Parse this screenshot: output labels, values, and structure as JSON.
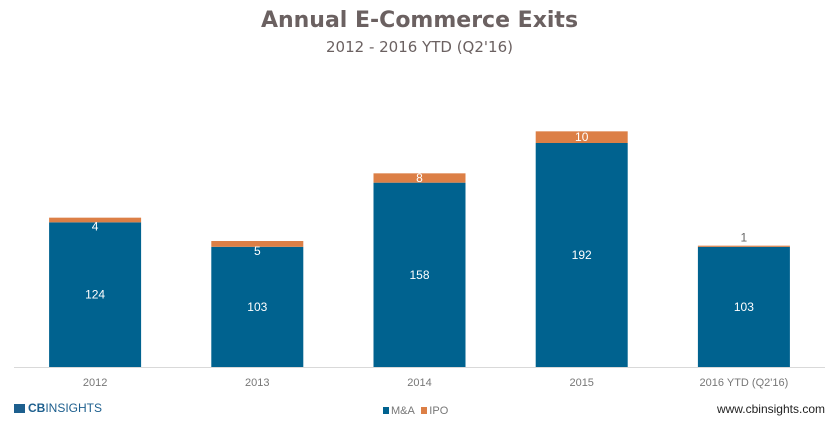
{
  "chart_data": {
    "type": "bar",
    "stacked": true,
    "title": "Annual E-Commerce Exits",
    "subtitle": "2012 - 2016 YTD (Q2'16)",
    "categories": [
      "2012",
      "2013",
      "2014",
      "2015",
      "2016 YTD (Q2'16)"
    ],
    "series": [
      {
        "name": "M&A",
        "values": [
          124,
          103,
          158,
          192,
          103
        ],
        "color": "#00628f"
      },
      {
        "name": "IPO",
        "values": [
          4,
          5,
          8,
          10,
          1
        ],
        "color": "#dc7f46"
      }
    ],
    "ylim": [
      0,
      210
    ],
    "grid": false,
    "legend": "bottom-center"
  },
  "branding": {
    "logo": "CBINSIGHTS",
    "url": "www.cbinsights.com"
  }
}
